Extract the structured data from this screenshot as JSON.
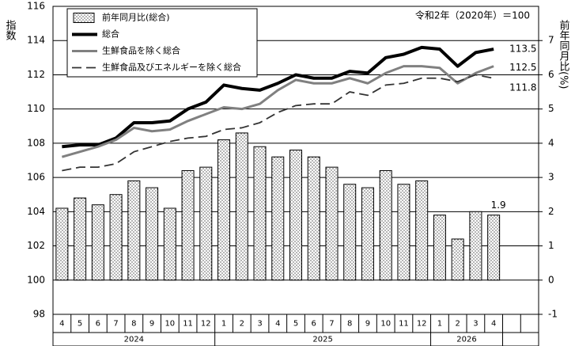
{
  "chart_data": {
    "type": "combo",
    "annotation": "令和2年（2020年）＝100",
    "y_label": "指数",
    "y2_label": "前年同月比(%)",
    "categories": [
      "4",
      "5",
      "6",
      "7",
      "8",
      "9",
      "10",
      "11",
      "12",
      "1",
      "2",
      "3",
      "4",
      "5",
      "6",
      "7",
      "8",
      "9",
      "10",
      "11",
      "12",
      "1",
      "2",
      "3",
      "4",
      null,
      null
    ],
    "category_years": [
      "2024",
      "2024",
      "2024",
      "2024",
      "2024",
      "2024",
      "2024",
      "2024",
      "2024",
      "2025",
      "2025",
      "2025",
      "2025",
      "2025",
      "2025",
      "2025",
      "2025",
      "2025",
      "2025",
      "2025",
      "2025",
      "2026",
      "2026",
      "2026",
      "2026",
      null,
      null
    ],
    "ylim": [
      98,
      116
    ],
    "yticks": [
      98,
      100,
      102,
      104,
      106,
      108,
      110,
      112,
      114,
      116
    ],
    "y2lim": [
      -1,
      8
    ],
    "y2ticks": [
      -1,
      0,
      1,
      2,
      3,
      4,
      5,
      6,
      7
    ],
    "grid": true,
    "legend": "top-left",
    "series": [
      {
        "name": "前年同月比(総合)",
        "type": "bar",
        "axis": "y2",
        "color": "#000000",
        "values": [
          2.1,
          2.4,
          2.2,
          2.5,
          2.9,
          2.7,
          2.1,
          3.2,
          3.3,
          4.1,
          4.3,
          3.9,
          3.6,
          3.8,
          3.6,
          3.3,
          2.8,
          2.7,
          3.2,
          2.8,
          2.9,
          1.9,
          1.2,
          2.0,
          1.9,
          null,
          null
        ]
      },
      {
        "name": "総合",
        "type": "line",
        "color": "#000000",
        "line_style": "solid",
        "values": [
          107.8,
          107.9,
          107.9,
          108.3,
          109.2,
          109.2,
          109.3,
          110.0,
          110.4,
          111.4,
          111.2,
          111.1,
          111.5,
          112.0,
          111.8,
          111.8,
          112.2,
          112.1,
          113.0,
          113.2,
          113.6,
          113.5,
          112.5,
          113.3,
          113.5,
          null,
          null
        ]
      },
      {
        "name": "生鮮食品を除く総合",
        "type": "line",
        "color": "#808080",
        "line_style": "solid",
        "values": [
          107.2,
          107.5,
          107.8,
          108.2,
          108.9,
          108.7,
          108.8,
          109.3,
          109.7,
          110.1,
          110.0,
          110.3,
          111.1,
          111.7,
          111.5,
          111.5,
          111.8,
          111.5,
          112.1,
          112.5,
          112.5,
          112.4,
          111.5,
          112.1,
          112.5,
          null,
          null
        ]
      },
      {
        "name": "生鮮食品及びエネルギーを除く総合",
        "type": "line",
        "color": "#333333",
        "line_style": "dashed",
        "values": [
          106.4,
          106.6,
          106.6,
          106.8,
          107.5,
          107.8,
          108.1,
          108.3,
          108.4,
          108.8,
          108.9,
          109.2,
          109.8,
          110.2,
          110.3,
          110.3,
          111.0,
          110.8,
          111.4,
          111.5,
          111.8,
          111.8,
          111.6,
          112.0,
          111.8,
          null,
          null
        ]
      }
    ]
  }
}
